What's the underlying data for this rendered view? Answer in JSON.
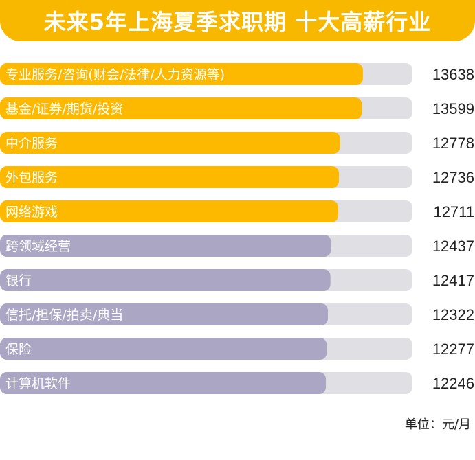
{
  "title": "未来5年上海夏季求职期 十大高薪行业",
  "unit_label": "单位：元/月",
  "colors": {
    "title_bg": "#f9b800",
    "highlight": "#fdb900",
    "regular": "#aaa6c4",
    "track": "#e0dfe4",
    "label_text": "#ffffff",
    "value_text": "#222222"
  },
  "chart_data": {
    "type": "bar",
    "orientation": "horizontal",
    "title": "未来5年上海夏季求职期 十大高薪行业",
    "unit": "元/月",
    "categories": [
      "专业服务/咨询(财会/法律/人力资源等)",
      "基金/证券/期货/投资",
      "中介服务",
      "外包服务",
      "网络游戏",
      "跨领域经营",
      "银行",
      "信托/担保/拍卖/典当",
      "保险",
      "计算机软件"
    ],
    "values": [
      13638,
      13599,
      12778,
      12736,
      12711,
      12437,
      12417,
      12322,
      12277,
      12246
    ],
    "highlighted_top": 5,
    "track_max": 15500
  }
}
